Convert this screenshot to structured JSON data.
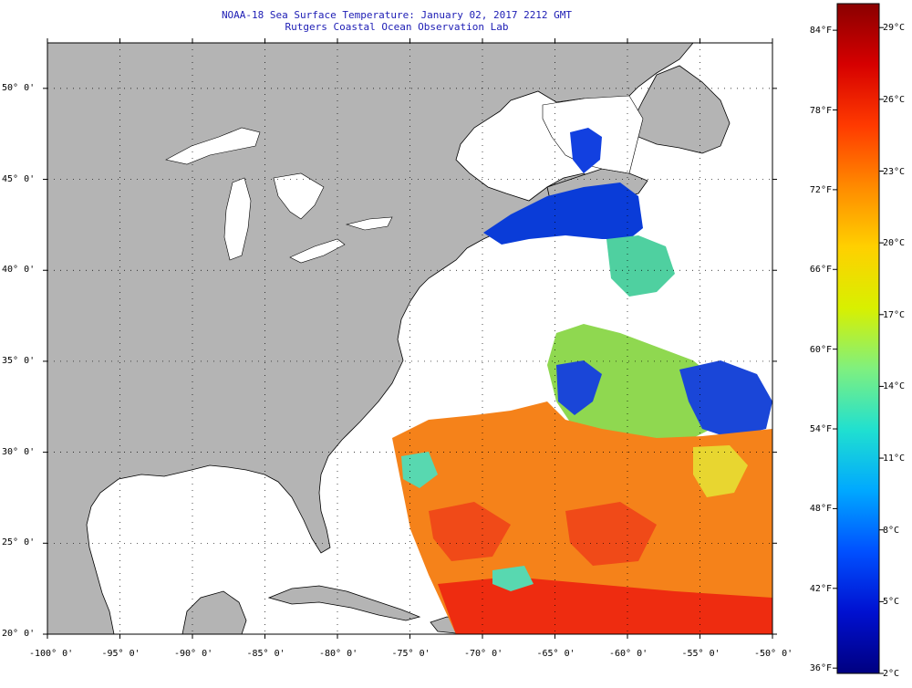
{
  "header": {
    "title": "NOAA-18 Sea Surface Temperature:  January 02, 2017 2212 GMT",
    "subtitle": "Rutgers Coastal Ocean Observation Lab"
  },
  "map": {
    "lon_range": [
      -100,
      -50
    ],
    "lat_range": [
      20,
      52.5
    ],
    "longitude_labels": [
      "-100° 0'",
      "-95° 0'",
      "-90° 0'",
      "-85° 0'",
      "-80° 0'",
      "-75° 0'",
      "-70° 0'",
      "-65° 0'",
      "-60° 0'",
      "-55° 0'",
      "-50° 0'"
    ],
    "latitude_labels": [
      "50° 0'",
      "45° 0'",
      "40° 0'",
      "35° 0'",
      "30° 0'",
      "25° 0'",
      "20° 0'"
    ],
    "land_color": "#b4b4b4",
    "nodata_color": "#ffffff",
    "grid": "dotted"
  },
  "color_scale": {
    "fahrenheit_labels": [
      "84°F",
      "78°F",
      "72°F",
      "66°F",
      "60°F",
      "54°F",
      "48°F",
      "42°F",
      "36°F"
    ],
    "celsius_labels": [
      "29°C",
      "26°C",
      "23°C",
      "20°C",
      "17°C",
      "14°C",
      "11°C",
      "8°C",
      "5°C",
      "2°C"
    ],
    "gradient_colors": [
      "#8a0000",
      "#d60000",
      "#ff3a00",
      "#ff8a00",
      "#ffd000",
      "#d8f000",
      "#7ff07f",
      "#20e0d0",
      "#00a8ff",
      "#0050ff",
      "#0010d0",
      "#000080"
    ]
  }
}
